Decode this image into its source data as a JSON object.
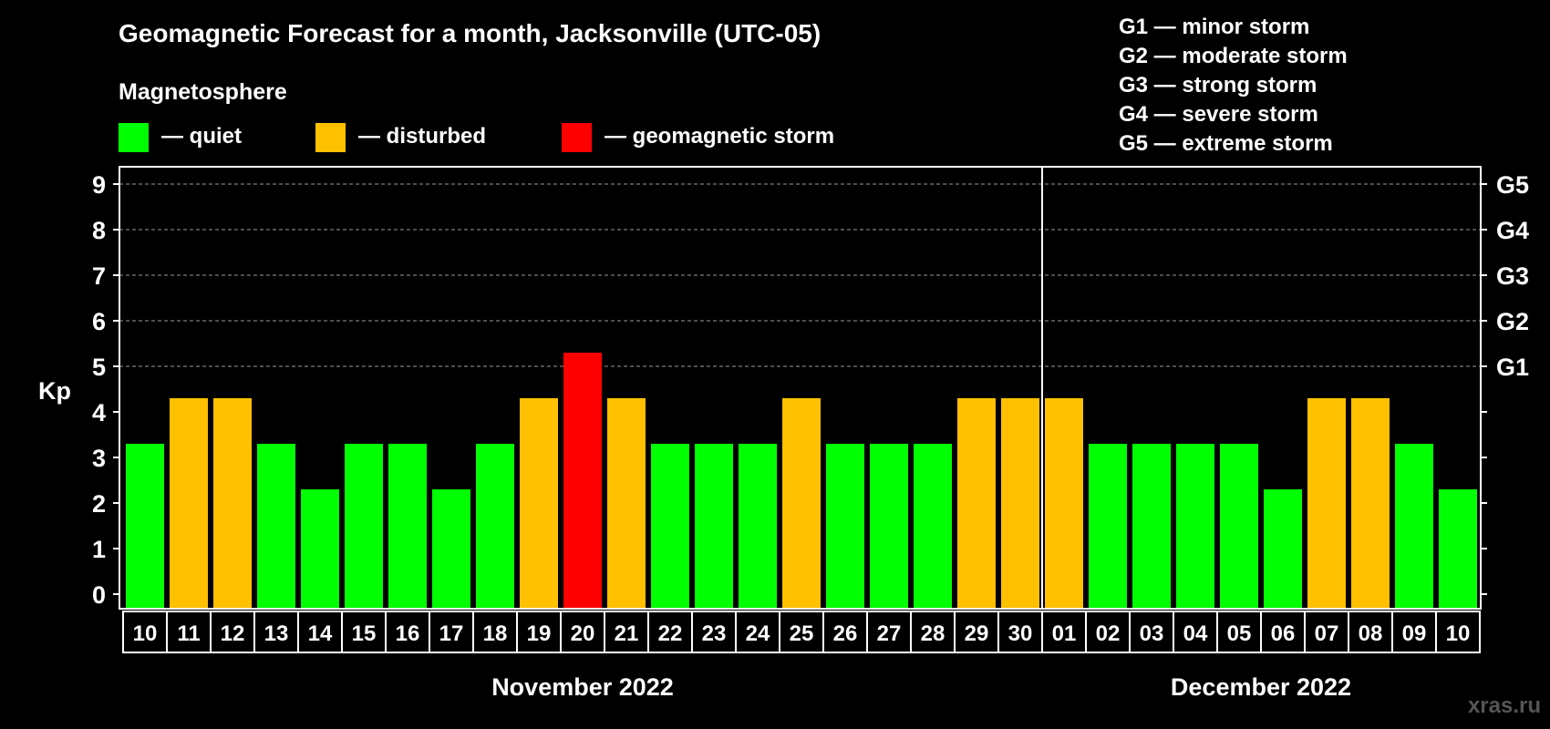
{
  "title": "Geomagnetic Forecast for a month, Jacksonville (UTC-05)",
  "magnetosphere": {
    "heading": "Magnetosphere",
    "items": [
      {
        "label": "— quiet",
        "color": "#00ff00"
      },
      {
        "label": "— disturbed",
        "color": "#ffc000"
      },
      {
        "label": "— geomagnetic storm",
        "color": "#ff0000"
      }
    ]
  },
  "storm_scale": [
    "G1 — minor storm",
    "G2 — moderate storm",
    "G3 — strong storm",
    "G4 — severe storm",
    "G5 — extreme storm"
  ],
  "watermark": "xras.ru",
  "chart_data": {
    "type": "bar",
    "ylabel": "Kp",
    "ylim": [
      0,
      9
    ],
    "yticks": [
      "0",
      "1",
      "2",
      "3",
      "4",
      "5",
      "6",
      "7",
      "8",
      "9"
    ],
    "right_axis": [
      {
        "kp": 5,
        "label": "G1"
      },
      {
        "kp": 6,
        "label": "G2"
      },
      {
        "kp": 7,
        "label": "G3"
      },
      {
        "kp": 8,
        "label": "G4"
      },
      {
        "kp": 9,
        "label": "G5"
      }
    ],
    "grid": true,
    "categories": [
      "10",
      "11",
      "12",
      "13",
      "14",
      "15",
      "16",
      "17",
      "18",
      "19",
      "20",
      "21",
      "22",
      "23",
      "24",
      "25",
      "26",
      "27",
      "28",
      "29",
      "30",
      "01",
      "02",
      "03",
      "04",
      "05",
      "06",
      "07",
      "08",
      "09",
      "10"
    ],
    "values": [
      3,
      4,
      4,
      3,
      2,
      3,
      3,
      2,
      3,
      4,
      5,
      4,
      3,
      3,
      3,
      4,
      3,
      3,
      3,
      4,
      4,
      4,
      3,
      3,
      3,
      3,
      2,
      4,
      4,
      3,
      2
    ],
    "color_rule": {
      "quiet_max": 3,
      "disturbed": 4,
      "storm_min": 5
    },
    "month_divider_after_index": 20,
    "months": [
      {
        "label": "November 2022",
        "start": 0,
        "end": 20
      },
      {
        "label": "December 2022",
        "start": 21,
        "end": 30
      }
    ]
  }
}
